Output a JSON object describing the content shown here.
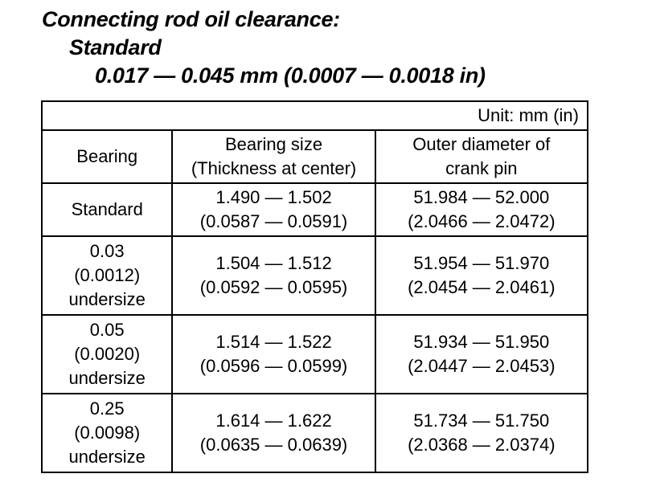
{
  "heading": {
    "line1": "Connecting rod oil clearance:",
    "line2": "Standard",
    "line3": "0.017 — 0.045 mm (0.0007 — 0.0018 in)"
  },
  "table": {
    "unit": "Unit: mm (in)",
    "headers": {
      "bearing": "Bearing",
      "size_line1": "Bearing size",
      "size_line2": "(Thickness at center)",
      "od_line1": "Outer diameter of",
      "od_line2": "crank pin"
    },
    "rows": [
      {
        "bearing": [
          "Standard"
        ],
        "size": [
          "1.490 — 1.502",
          "(0.0587 — 0.0591)"
        ],
        "od": [
          "51.984 — 52.000",
          "(2.0466 — 2.0472)"
        ]
      },
      {
        "bearing": [
          "0.03",
          "(0.0012)",
          "undersize"
        ],
        "size": [
          "1.504 — 1.512",
          "(0.0592 — 0.0595)"
        ],
        "od": [
          "51.954 — 51.970",
          "(2.0454 — 2.0461)"
        ]
      },
      {
        "bearing": [
          "0.05",
          "(0.0020)",
          "undersize"
        ],
        "size": [
          "1.514 — 1.522",
          "(0.0596 — 0.0599)"
        ],
        "od": [
          "51.934 — 51.950",
          "(2.0447 — 2.0453)"
        ]
      },
      {
        "bearing": [
          "0.25",
          "(0.0098)",
          "undersize"
        ],
        "size": [
          "1.614 — 1.622",
          "(0.0635 — 0.0639)"
        ],
        "od": [
          "51.734 — 51.750",
          "(2.0368 — 2.0374)"
        ]
      }
    ]
  }
}
